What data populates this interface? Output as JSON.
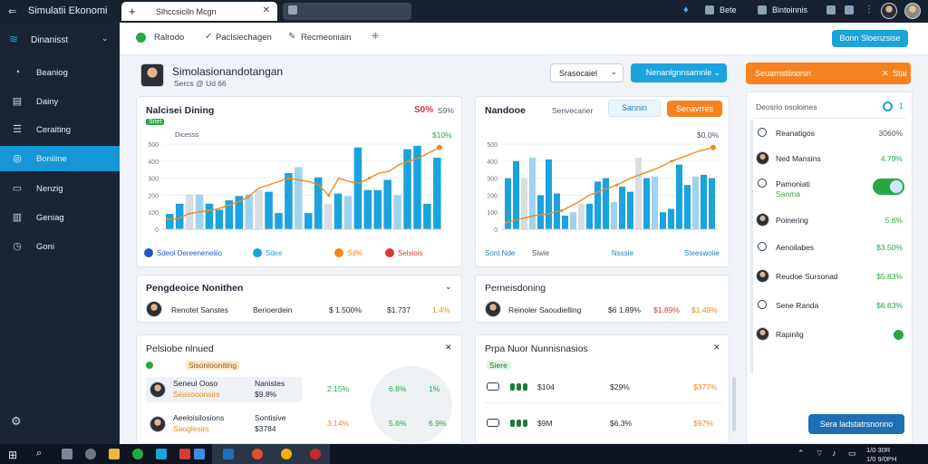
{
  "window": {
    "app_title": "Simulatii Ekonomi",
    "tab_label": "Slhccsiciln Mcgn",
    "right_items": [
      "Bete",
      "Bintoinnis"
    ]
  },
  "sidebar": {
    "brand": "Dinanisst",
    "items": [
      {
        "label": "Beaniog",
        "icon": "chart-icon"
      },
      {
        "label": "Dainy",
        "icon": "calendar-icon"
      },
      {
        "label": "Ceraiting",
        "icon": "list-icon"
      },
      {
        "label": "Boniiine",
        "icon": "globe-icon",
        "active": true
      },
      {
        "label": "Nenzig",
        "icon": "document-icon"
      },
      {
        "label": "Geniag",
        "icon": "chart-bar-icon"
      },
      {
        "label": "Goni",
        "icon": "clock-icon"
      }
    ]
  },
  "toolbar": {
    "items": [
      "Ralrodo",
      "Paclsiechagen",
      "Recmeoniain"
    ],
    "right_button": "Bonn Sloenzsise"
  },
  "header": {
    "title": "Simolasionandotangan",
    "subtitle": "Sercs  @  Ud 66",
    "dropdown": "Srasocaiel",
    "blue_button": "Nenanlgnnsamnle"
  },
  "right_panel": {
    "orange_bar": "Seuarnstiinonin",
    "orange_bar_right": "Stai",
    "header_label": "Deosrio osoloines",
    "header_badge": "1",
    "rows": [
      {
        "label": "Reanatigos",
        "value": "3060%"
      },
      {
        "label": "Ned Mansins",
        "value": "4.79%"
      },
      {
        "label": "Pamoniati",
        "sublabel": "Sanma",
        "toggle": true
      },
      {
        "label": "Poinering",
        "value": "5.6%"
      },
      {
        "label": "Aenoilabes",
        "value": "$3.50%"
      },
      {
        "label": "Reudoe Sursonad",
        "value": "$5.83%"
      },
      {
        "label": "Sene Randa",
        "value": "$6.83%"
      },
      {
        "label": "Rapinlig",
        "value": ""
      }
    ],
    "bottom_button": "Sera ladstatrsnonno"
  },
  "card1": {
    "title": "Nalcisei Dining",
    "title_right_a": "S0%",
    "title_right_b": "S9%",
    "sub_badge": "Snet",
    "sub_label": "Dicesss",
    "small_value": "$10%",
    "legend": [
      {
        "label": "Sdeol Dereeneneiiio",
        "color": "#2356c6"
      },
      {
        "label": "Sdee",
        "color": "#1aa3dc"
      },
      {
        "label": "Sd%",
        "color": "#f08a1c"
      },
      {
        "label": "Selsiois",
        "color": "#d83a3a"
      }
    ]
  },
  "card2": {
    "title": "Nandooe",
    "sublabel": "Senvecaner",
    "tab_a": "Sannin",
    "tab_b": "Senavrres",
    "small_value": "$0.0%",
    "legend": [
      "Sont Nde",
      "Siwie",
      "Nsssie",
      "Steeswoiie"
    ]
  },
  "card3": {
    "title": "Pengdeoice Nonithen",
    "name": "Renotet Sanstes",
    "role": "Berioerdein",
    "v1": "$ 1.500%",
    "v2": "$1.737",
    "v3": "1.4%"
  },
  "card4": {
    "title": "Perneisdoning",
    "name": "Reinoler Saoudielling",
    "v1": "$6 1.89%",
    "v2": "$1.89%",
    "v3": "$1.49%"
  },
  "card5": {
    "title": "Pelsiobe nlnued",
    "badge": "Sisoniooniting",
    "rows": [
      {
        "name": "Seneul Ooso",
        "sub": "Seasooonsirs",
        "mid": "Nanistes",
        "mid2": "$9.8%",
        "a": "2.15%",
        "b": "6.8%",
        "c": "1%"
      },
      {
        "name": "Aeeloisilosions",
        "sub": "Saoglesirs",
        "mid": "Sontisive",
        "mid2": "$3784",
        "a": "3.14%",
        "b": "5.6%",
        "c": "6.9%"
      }
    ]
  },
  "card6": {
    "title": "Prpa Nuor Nunnisnasios",
    "badge": "Siere",
    "rows": [
      {
        "code": "$104",
        "v1": "$29%",
        "v2": "$377%"
      },
      {
        "code": "$9M",
        "v1": "$6.3%",
        "v2": "$97%"
      }
    ]
  },
  "taskbar": {
    "clock_time": "1/0 30R",
    "clock_date": "1/0 9/0PH"
  },
  "chart_data": [
    {
      "type": "bar",
      "title": "Nalcisei Dining",
      "yticks": [
        0,
        100,
        200,
        300,
        400,
        500
      ],
      "ylim": [
        0,
        500
      ],
      "series": [
        {
          "type": "bar",
          "values": [
            90,
            150,
            205,
            205,
            150,
            115,
            170,
            195,
            205,
            230,
            220,
            95,
            330,
            365,
            95,
            305,
            150,
            210,
            195,
            480,
            230,
            230,
            290,
            200,
            470,
            490,
            150,
            420
          ]
        },
        {
          "type": "line",
          "values": [
            60,
            60,
            90,
            100,
            110,
            120,
            140,
            160,
            190,
            240,
            260,
            280,
            300,
            290,
            280,
            260,
            200,
            300,
            280,
            270,
            300,
            330,
            340,
            380,
            400,
            420,
            450,
            480
          ]
        }
      ]
    },
    {
      "type": "bar",
      "title": "Nandooe",
      "yticks": [
        0,
        100,
        200,
        300,
        400,
        500
      ],
      "ylim": [
        0,
        500
      ],
      "series": [
        {
          "type": "bar",
          "values": [
            300,
            400,
            300,
            420,
            200,
            410,
            210,
            80,
            100,
            150,
            150,
            280,
            300,
            160,
            250,
            220,
            420,
            300,
            310,
            100,
            120,
            380,
            260,
            310,
            320,
            300
          ]
        },
        {
          "type": "line",
          "values": [
            40,
            60,
            80,
            90,
            110,
            150,
            200,
            230,
            260,
            300,
            330,
            360,
            400,
            430,
            460,
            480
          ]
        }
      ]
    }
  ]
}
